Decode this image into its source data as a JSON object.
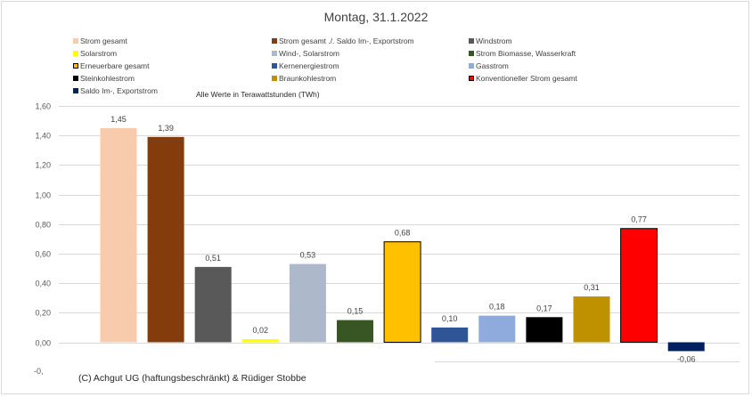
{
  "chart_data": {
    "type": "bar",
    "title": "Montag, 31.1.2022",
    "note": "Alle Werte in Terawattstunden (TWh)",
    "copyright": "(C) Achgut UG (haftungsbeschränkt) & Rüdiger Stobbe",
    "ylim": [
      -0.06,
      1.6
    ],
    "yticks": [
      "1,60",
      "1,40",
      "1,20",
      "1,00",
      "0,80",
      "0,60",
      "0,40",
      "0,20",
      "0,00"
    ],
    "yticks_values": [
      1.6,
      1.4,
      1.2,
      1.0,
      0.8,
      0.6,
      0.4,
      0.2,
      0.0
    ],
    "ytick_cut": "-0,",
    "grid": true,
    "legend_position": "top",
    "series": [
      {
        "name": "Strom gesamt",
        "value": 1.45,
        "label": "1,45",
        "color": "#f8cbad",
        "outline": "#f8cbad"
      },
      {
        "name": "Strom gesamt ./. Saldo Im-, Exportstrom",
        "value": 1.39,
        "label": "1,39",
        "color": "#843c0c",
        "outline": "#843c0c"
      },
      {
        "name": "Windstrom",
        "value": 0.51,
        "label": "0,51",
        "color": "#595959",
        "outline": "#595959"
      },
      {
        "name": "Solarstrom",
        "value": 0.02,
        "label": "0,02",
        "color": "#ffff00",
        "outline": "#ffff00"
      },
      {
        "name": "Wind-, Solarstrom",
        "value": 0.53,
        "label": "0,53",
        "color": "#adb9ca",
        "outline": "#adb9ca"
      },
      {
        "name": "Strom Biomasse, Wasserkraft",
        "value": 0.15,
        "label": "0,15",
        "color": "#375623",
        "outline": "#375623"
      },
      {
        "name": "Erneuerbare gesamt",
        "value": 0.68,
        "label": "0,68",
        "color": "#ffc000",
        "outline": "#000000"
      },
      {
        "name": "Kernenergiestrom",
        "value": 0.1,
        "label": "0,10",
        "color": "#2f5597",
        "outline": "#2f5597"
      },
      {
        "name": "Gasstrom",
        "value": 0.18,
        "label": "0,18",
        "color": "#8faadc",
        "outline": "#8faadc"
      },
      {
        "name": "Steinkohlestrom",
        "value": 0.17,
        "label": "0,17",
        "color": "#000000",
        "outline": "#000000"
      },
      {
        "name": "Braunkohlestrom",
        "value": 0.31,
        "label": "0,31",
        "color": "#bf9000",
        "outline": "#bf9000"
      },
      {
        "name": "Konventioneller Strom gesamt",
        "value": 0.77,
        "label": "0,77",
        "color": "#ff0000",
        "outline": "#000000"
      },
      {
        "name": "Saldo Im-, Exportstrom",
        "value": -0.06,
        "label": "-0,06",
        "color": "#002060",
        "outline": "#002060"
      }
    ]
  }
}
